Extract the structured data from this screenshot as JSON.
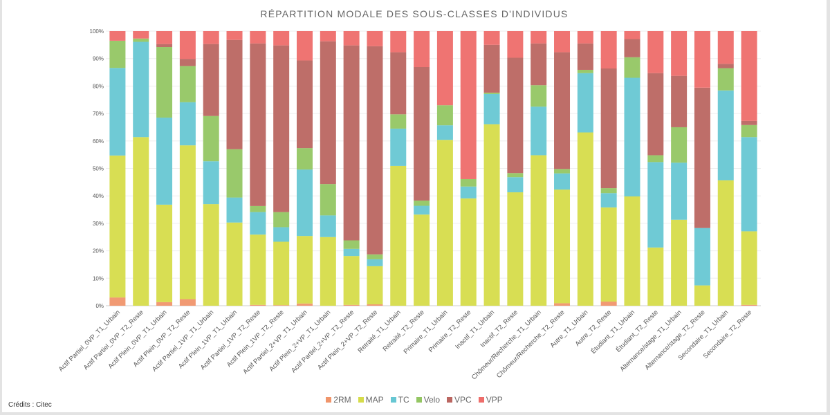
{
  "chart_data": {
    "type": "bar",
    "stacked": "percent",
    "title": "RÉPARTITION MODALE DES SOUS-CLASSES D'INDIVIDUS",
    "xlabel": "",
    "ylabel": "",
    "ylim": [
      0,
      100
    ],
    "yticks": [
      "0%",
      "10%",
      "20%",
      "30%",
      "40%",
      "50%",
      "60%",
      "70%",
      "80%",
      "90%",
      "100%"
    ],
    "grid": true,
    "legend_position": "bottom",
    "categories": [
      "Actif Partiel_0VP_T1_Urbain",
      "Actif Partiel_0VP_T2_Reste",
      "Actif Plein_0VP_T1_Urbain",
      "Actif Plein_0VP_T2_Reste",
      "Actif Partiel_1VP_T1_Urbain",
      "Actif Plein_1VP_T1_Urbain",
      "Actif Partiel_1VP_T2_Reste",
      "Actif Plein_1VP_T2_Reste",
      "Actif Partiel_2+VP_T1_Urbain",
      "Actif Plein_2+VP_T1_Urbain",
      "Actif Partiel_2+VP_T2_Reste",
      "Actif Plein_2+VP_T2_Reste",
      "Retraité_T1_Urbain",
      "Retraité_T2_Reste",
      "Primaire_T1_Urbain",
      "Primaire_T2_Reste",
      "Inactif_T1_Urbain",
      "Inactif_T2_Reste",
      "Chômeur/Recherche_T1_Urbain",
      "Chômeur/Recherche_T2_Reste",
      "Autre_T1_Urbain",
      "Autre_T2_Reste",
      "Étudiant_T1_Urbain",
      "Étudiant_T2_Reste",
      "Alternance/stage_T1_Urbain",
      "Alternance/stage_T2_Reste",
      "Secondaire_T1_Urbain",
      "Secondaire_T2_Reste"
    ],
    "series": [
      {
        "name": "2RM",
        "color": "#f0956b",
        "values": [
          3.0,
          0,
          1.3,
          2.4,
          0,
          0,
          0.3,
          0.2,
          0.8,
          0,
          0.3,
          0.5,
          0,
          0,
          0,
          0,
          0,
          0,
          0,
          0.9,
          0,
          1.5,
          0,
          0,
          0,
          0,
          0,
          0.3
        ]
      },
      {
        "name": "MAP",
        "color": "#d6dc4a",
        "values": [
          51.7,
          61.4,
          35.5,
          56.0,
          37.0,
          30.3,
          25.6,
          23.1,
          24.6,
          25.0,
          17.8,
          13.9,
          50.9,
          33.2,
          60.4,
          39.1,
          66.1,
          41.3,
          54.8,
          41.4,
          63.1,
          34.3,
          39.8,
          21.2,
          31.3,
          7.4,
          45.7,
          26.8
        ]
      },
      {
        "name": "TC",
        "color": "#67c7d3",
        "values": [
          31.9,
          34.7,
          31.7,
          15.7,
          15.6,
          9.1,
          8.2,
          5.3,
          24.2,
          7.9,
          2.6,
          2.5,
          13.6,
          3.2,
          5.3,
          4.3,
          11.0,
          5.5,
          17.7,
          5.9,
          21.6,
          5.2,
          43.2,
          31.1,
          20.8,
          20.9,
          32.7,
          34.3
        ]
      },
      {
        "name": "Velo",
        "color": "#94c663",
        "values": [
          9.9,
          1.2,
          25.7,
          13.2,
          16.5,
          17.6,
          2.2,
          5.5,
          7.8,
          11.4,
          3.1,
          1.8,
          5.2,
          1.9,
          7.3,
          2.7,
          0.5,
          1.5,
          7.8,
          1.6,
          1.2,
          1.8,
          7.5,
          2.5,
          12.9,
          0,
          8.1,
          4.4
        ]
      },
      {
        "name": "VPC",
        "color": "#bb6661",
        "values": [
          0,
          0,
          1.1,
          2.6,
          26.2,
          39.8,
          59.2,
          60.7,
          31.9,
          52.0,
          71.0,
          75.8,
          22.6,
          48.6,
          0,
          0,
          17.4,
          42.0,
          15.2,
          42.5,
          9.6,
          43.6,
          6.6,
          29.9,
          18.7,
          51.1,
          1.6,
          1.5
        ]
      },
      {
        "name": "VPP",
        "color": "#ee6d6a",
        "values": [
          3.5,
          2.7,
          4.7,
          10.1,
          4.7,
          3.2,
          4.5,
          5.2,
          10.7,
          3.7,
          5.2,
          5.5,
          7.7,
          13.1,
          27.0,
          53.9,
          5.0,
          9.7,
          4.5,
          7.7,
          4.5,
          13.6,
          2.9,
          15.3,
          16.3,
          20.6,
          11.9,
          32.7
        ]
      }
    ]
  },
  "credits": "Crédits : Citec"
}
